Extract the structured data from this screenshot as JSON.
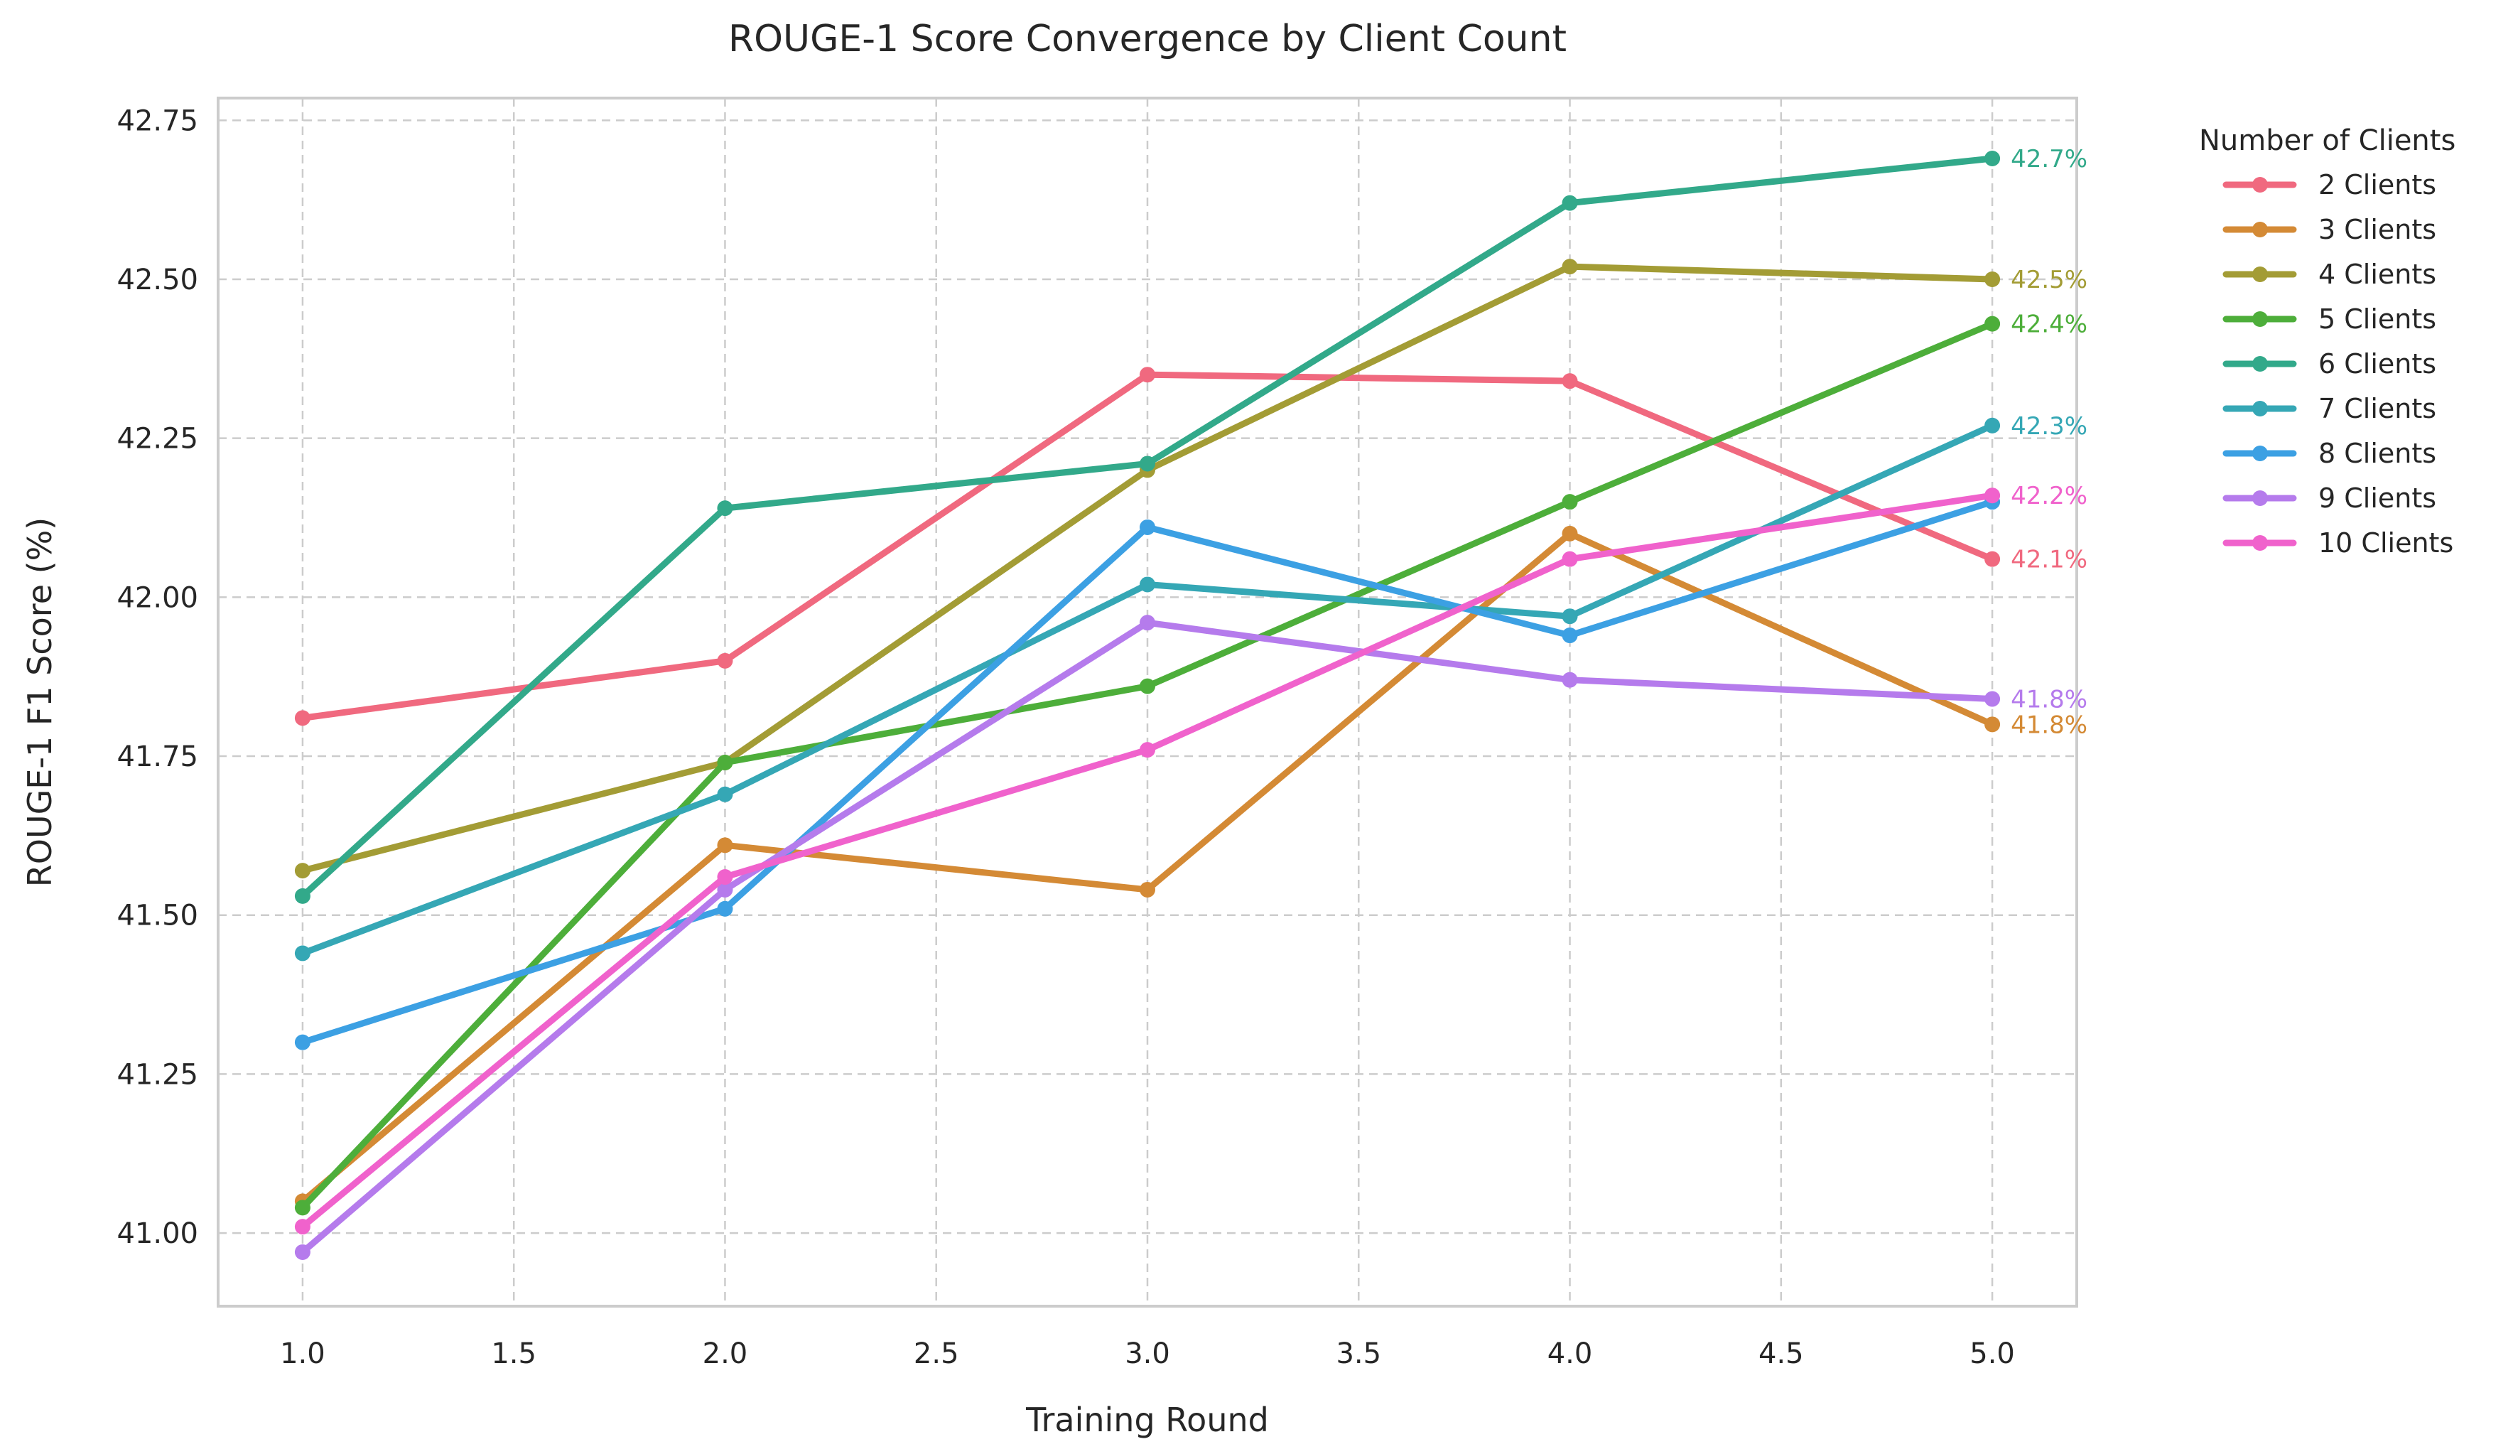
{
  "chart_data": {
    "type": "line",
    "title": "ROUGE-1 Score Convergence by Client Count",
    "xlabel": "Training Round",
    "ylabel": "ROUGE-1 F1 Score (%)",
    "xlim": [
      0.8,
      5.2
    ],
    "ylim": [
      40.885,
      42.785
    ],
    "xticks": [
      1.0,
      1.5,
      2.0,
      2.5,
      3.0,
      3.5,
      4.0,
      4.5,
      5.0
    ],
    "yticks": [
      41.0,
      41.25,
      41.5,
      41.75,
      42.0,
      42.25,
      42.5,
      42.75
    ],
    "grid": true,
    "legend": {
      "title": "Number of Clients",
      "placement": "outside-top-right"
    },
    "x": [
      1,
      2,
      3,
      4,
      5
    ],
    "series": [
      {
        "name": "2 Clients",
        "color": "#f0697f",
        "values": [
          41.81,
          41.9,
          42.35,
          42.34,
          42.06
        ],
        "end_label": "42.1%"
      },
      {
        "name": "3 Clients",
        "color": "#d48a35",
        "values": [
          41.05,
          41.61,
          41.54,
          42.1,
          41.8
        ],
        "end_label": "41.8%"
      },
      {
        "name": "4 Clients",
        "color": "#a39c35",
        "values": [
          41.57,
          41.74,
          42.2,
          42.52,
          42.5
        ],
        "end_label": "42.5%"
      },
      {
        "name": "5 Clients",
        "color": "#4dae3a",
        "values": [
          41.04,
          41.74,
          41.86,
          42.15,
          42.43
        ],
        "end_label": "42.4%"
      },
      {
        "name": "6 Clients",
        "color": "#32a98a",
        "values": [
          41.53,
          42.14,
          42.21,
          42.62,
          42.69
        ],
        "end_label": "42.7%"
      },
      {
        "name": "7 Clients",
        "color": "#35a7b5",
        "values": [
          41.44,
          41.69,
          42.02,
          41.97,
          42.27
        ],
        "end_label": "42.3%"
      },
      {
        "name": "8 Clients",
        "color": "#3ca0e3",
        "values": [
          41.3,
          41.51,
          42.11,
          41.94,
          42.15
        ],
        "end_label": ""
      },
      {
        "name": "9 Clients",
        "color": "#b57bec",
        "values": [
          40.97,
          41.54,
          41.96,
          41.87,
          41.84
        ],
        "end_label": "41.8%"
      },
      {
        "name": "10 Clients",
        "color": "#f062cc",
        "values": [
          41.01,
          41.56,
          41.76,
          42.06,
          42.16
        ],
        "end_label": "42.2%"
      }
    ]
  }
}
